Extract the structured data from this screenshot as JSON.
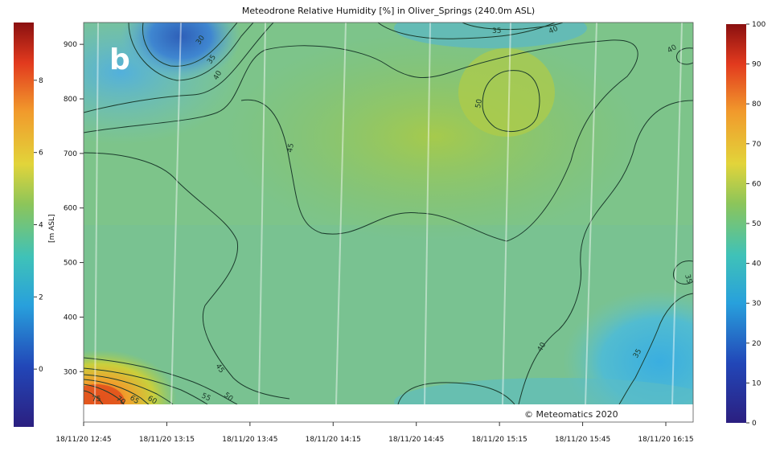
{
  "chart_data": {
    "type": "heatmap",
    "title": "Meteodrone Relative Humidity [%] in Oliver_Springs (240.0m ASL)",
    "ylabel": "[m ASL]",
    "badge": "b",
    "copyright": "© Meteomatics 2020",
    "x_ticks": [
      "18/11/20 12:45",
      "18/11/20 13:15",
      "18/11/20 13:45",
      "18/11/20 14:15",
      "18/11/20 14:45",
      "18/11/20 15:15",
      "18/11/20 15:45",
      "18/11/20 16:15"
    ],
    "y_ticks": [
      300,
      400,
      500,
      600,
      700,
      800,
      900
    ],
    "ylim": [
      240,
      940
    ],
    "left_colorbar": {
      "ticks": [
        0,
        2,
        4,
        6,
        8
      ],
      "range": [
        -1.6,
        9.6
      ]
    },
    "right_colorbar": {
      "ticks": [
        0,
        10,
        20,
        30,
        40,
        50,
        60,
        70,
        80,
        90,
        100
      ],
      "range": [
        0,
        100
      ]
    },
    "contour_levels": [
      "30",
      "35",
      "40",
      "45",
      "50",
      "55",
      "60",
      "65",
      "70",
      "75"
    ],
    "colors": {
      "low": "#2a3d9a",
      "mid": "#3ab7c8",
      "green": "#8cc55a",
      "high": "#e23a1e"
    }
  }
}
